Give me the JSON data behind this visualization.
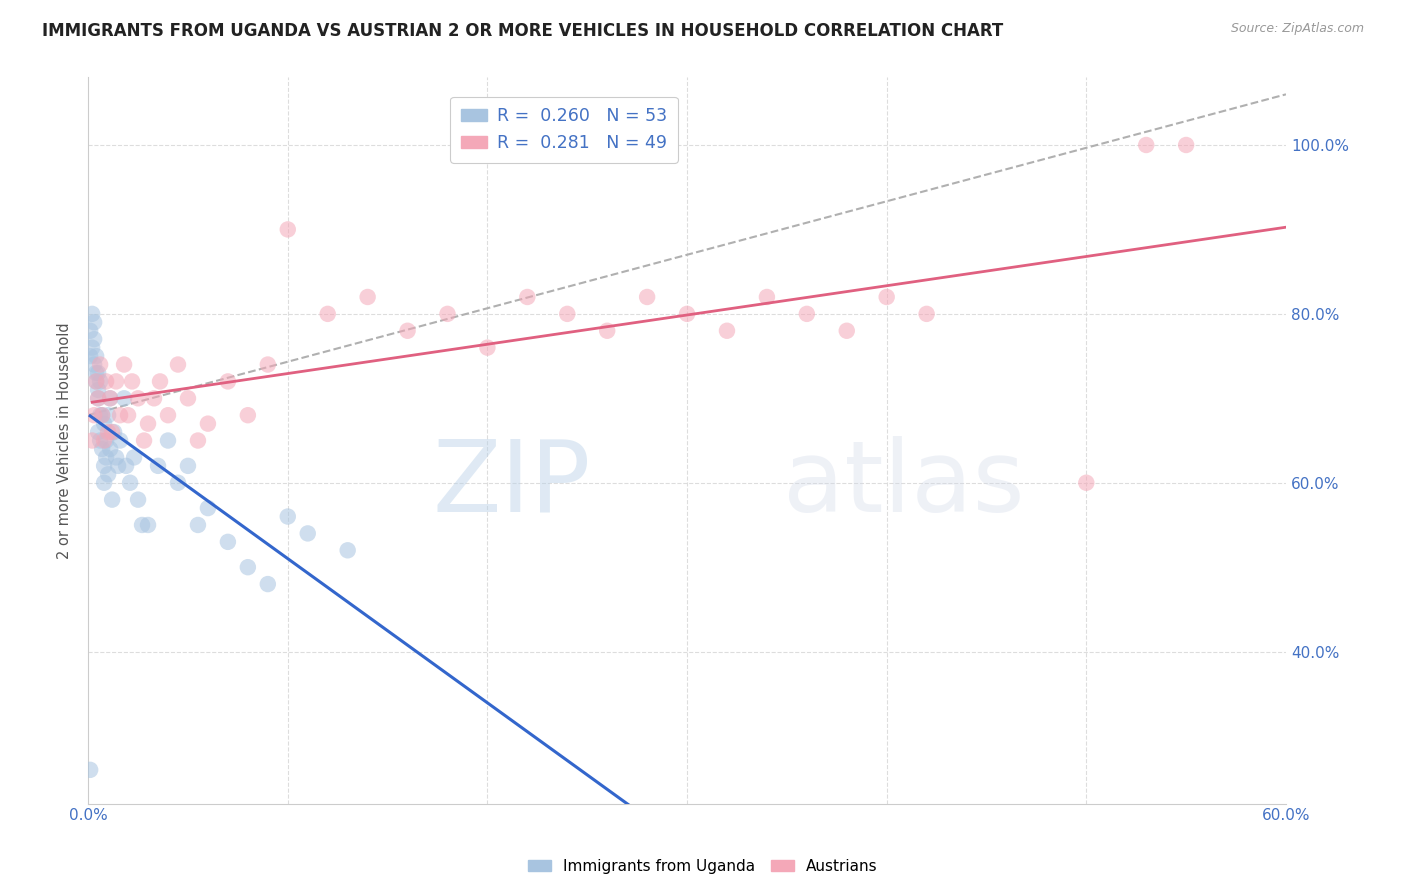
{
  "title": "IMMIGRANTS FROM UGANDA VS AUSTRIAN 2 OR MORE VEHICLES IN HOUSEHOLD CORRELATION CHART",
  "source": "Source: ZipAtlas.com",
  "ylabel": "2 or more Vehicles in Household",
  "xlabel": "",
  "legend_label1": "Immigrants from Uganda",
  "legend_label2": "Austrians",
  "R1": 0.26,
  "N1": 53,
  "R2": 0.281,
  "N2": 49,
  "color1": "#a8c4e0",
  "color2": "#f4a8b8",
  "trendline_color1": "#3366cc",
  "trendline_color2": "#e06080",
  "xmin": 0.0,
  "xmax": 0.6,
  "ymin": 0.22,
  "ymax": 1.08,
  "yticks": [
    0.4,
    0.6,
    0.8,
    1.0
  ],
  "xtick_positions": [
    0.0,
    0.6
  ],
  "xtick_labels": [
    "0.0%",
    "60.0%"
  ],
  "watermark_zip": "ZIP",
  "watermark_atlas": "atlas",
  "background_color": "#ffffff",
  "grid_color": "#dddddd",
  "blue_x": [
    0.001,
    0.001,
    0.002,
    0.002,
    0.003,
    0.003,
    0.003,
    0.004,
    0.004,
    0.004,
    0.005,
    0.005,
    0.005,
    0.005,
    0.006,
    0.006,
    0.006,
    0.007,
    0.007,
    0.008,
    0.008,
    0.008,
    0.009,
    0.009,
    0.01,
    0.01,
    0.011,
    0.011,
    0.012,
    0.013,
    0.014,
    0.015,
    0.016,
    0.018,
    0.019,
    0.021,
    0.023,
    0.025,
    0.027,
    0.03,
    0.035,
    0.04,
    0.045,
    0.05,
    0.055,
    0.06,
    0.07,
    0.08,
    0.09,
    0.1,
    0.11,
    0.13,
    0.001
  ],
  "blue_y": [
    0.75,
    0.78,
    0.76,
    0.8,
    0.74,
    0.77,
    0.79,
    0.72,
    0.75,
    0.73,
    0.7,
    0.73,
    0.66,
    0.71,
    0.68,
    0.72,
    0.65,
    0.64,
    0.68,
    0.62,
    0.6,
    0.67,
    0.65,
    0.63,
    0.61,
    0.68,
    0.64,
    0.7,
    0.58,
    0.66,
    0.63,
    0.62,
    0.65,
    0.7,
    0.62,
    0.6,
    0.63,
    0.58,
    0.55,
    0.55,
    0.62,
    0.65,
    0.6,
    0.62,
    0.55,
    0.57,
    0.53,
    0.5,
    0.48,
    0.56,
    0.54,
    0.52,
    0.26
  ],
  "pink_x": [
    0.002,
    0.003,
    0.004,
    0.005,
    0.006,
    0.007,
    0.008,
    0.009,
    0.01,
    0.011,
    0.012,
    0.014,
    0.016,
    0.018,
    0.02,
    0.022,
    0.025,
    0.028,
    0.03,
    0.033,
    0.036,
    0.04,
    0.045,
    0.05,
    0.055,
    0.06,
    0.07,
    0.08,
    0.09,
    0.1,
    0.12,
    0.14,
    0.16,
    0.18,
    0.2,
    0.22,
    0.24,
    0.26,
    0.28,
    0.3,
    0.32,
    0.34,
    0.36,
    0.38,
    0.4,
    0.42,
    0.5,
    0.53,
    0.55
  ],
  "pink_y": [
    0.65,
    0.68,
    0.72,
    0.7,
    0.74,
    0.68,
    0.65,
    0.72,
    0.66,
    0.7,
    0.66,
    0.72,
    0.68,
    0.74,
    0.68,
    0.72,
    0.7,
    0.65,
    0.67,
    0.7,
    0.72,
    0.68,
    0.74,
    0.7,
    0.65,
    0.67,
    0.72,
    0.68,
    0.74,
    0.9,
    0.8,
    0.82,
    0.78,
    0.8,
    0.76,
    0.82,
    0.8,
    0.78,
    0.82,
    0.8,
    0.78,
    0.82,
    0.8,
    0.78,
    0.82,
    0.8,
    0.6,
    1.0,
    1.0
  ]
}
